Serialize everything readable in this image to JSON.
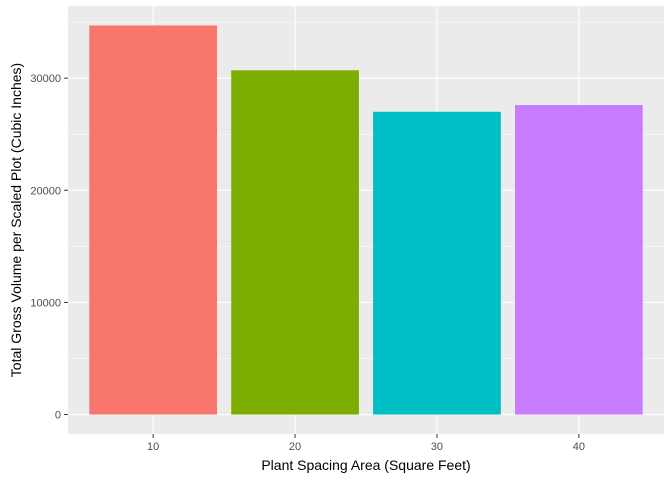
{
  "chart_data": {
    "type": "bar",
    "title": "",
    "xlabel": "Plant Spacing Area (Square Feet)",
    "ylabel": "Total Gross Volume per Scaled Plot (Cubic Inches)",
    "categories": [
      "10",
      "20",
      "30",
      "40"
    ],
    "values": [
      34700,
      30700,
      27000,
      27600
    ],
    "colors": [
      "#F8766D",
      "#7CAE00",
      "#00BFC4",
      "#C77CFF"
    ],
    "ylim": [
      -1735,
      36435
    ],
    "yticks": [
      0,
      10000,
      20000,
      30000
    ],
    "ytick_labels": [
      "0",
      "10000",
      "20000",
      "30000"
    ],
    "grid": true,
    "legend": "none",
    "panel_background": "#EBEBEB",
    "grid_color": "#FFFFFF"
  }
}
